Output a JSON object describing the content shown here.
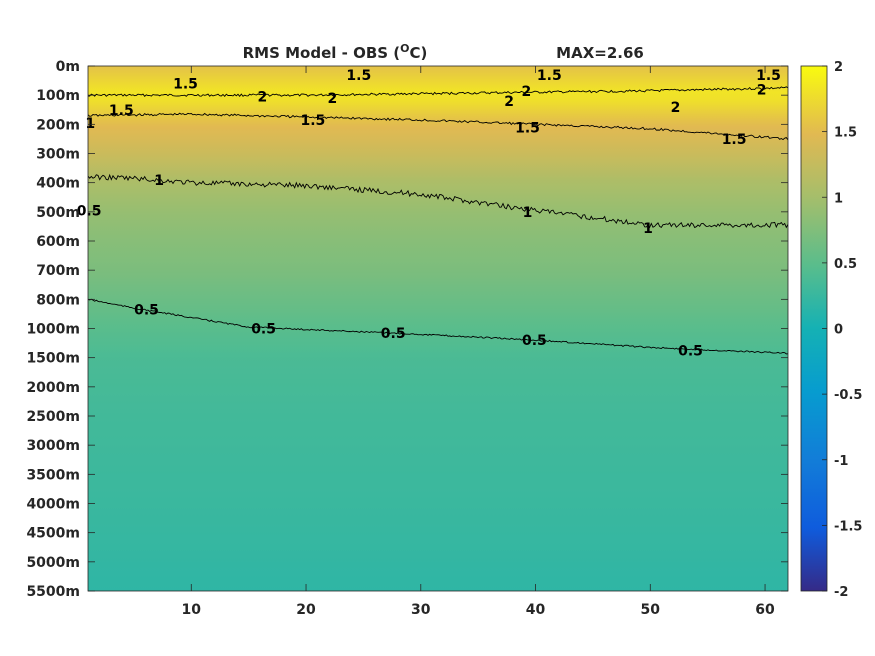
{
  "chart_data": {
    "type": "heatmap",
    "title": "RMS Model - OBS (",
    "title_superscript": "O",
    "title_unit": "C)",
    "max_label": "MAX=2.66",
    "x_ticks": [
      "10",
      "20",
      "30",
      "40",
      "50",
      "60"
    ],
    "x_tick_values": [
      10,
      20,
      30,
      40,
      50,
      60
    ],
    "xlim": [
      1,
      62
    ],
    "y_ticks": [
      "0m",
      "100m",
      "200m",
      "300m",
      "400m",
      "500m",
      "600m",
      "700m",
      "800m",
      "1000m",
      "1500m",
      "2000m",
      "2500m",
      "3000m",
      "3500m",
      "4000m",
      "4500m",
      "5000m",
      "5500m"
    ],
    "colorbar": {
      "ticks": [
        "2",
        "1.5",
        "1",
        "0.5",
        "0",
        "-0.5",
        "-1",
        "-1.5",
        "-2"
      ],
      "range": [
        -2,
        2
      ],
      "colormap": "parula"
    },
    "contour_levels": [
      {
        "level": 2,
        "label": "2",
        "depth_index_by_x": [
          [
            1,
            1.0
          ],
          [
            10,
            1.0
          ],
          [
            20,
            1.0
          ],
          [
            30,
            0.95
          ],
          [
            40,
            0.9
          ],
          [
            50,
            0.85
          ],
          [
            62,
            0.75
          ]
        ]
      },
      {
        "level": 1.5,
        "label": "1.5",
        "depth_index_by_x": [
          [
            1,
            1.7
          ],
          [
            10,
            1.65
          ],
          [
            20,
            1.75
          ],
          [
            30,
            1.85
          ],
          [
            40,
            2.0
          ],
          [
            50,
            2.15
          ],
          [
            62,
            2.5
          ]
        ]
      },
      {
        "level": 1,
        "label": "1",
        "depth_index_by_x": [
          [
            1,
            3.8
          ],
          [
            5,
            3.85
          ],
          [
            10,
            4.0
          ],
          [
            20,
            4.1
          ],
          [
            30,
            4.4
          ],
          [
            40,
            4.95
          ],
          [
            50,
            5.45
          ],
          [
            62,
            5.45
          ]
        ]
      },
      {
        "level": 0.5,
        "label": "0.5",
        "depth_index_by_x": [
          [
            1,
            8.0
          ],
          [
            5,
            8.3
          ],
          [
            15,
            8.95
          ],
          [
            30,
            9.2
          ],
          [
            40,
            9.4
          ],
          [
            50,
            9.65
          ],
          [
            62,
            9.85
          ]
        ]
      }
    ],
    "field_profile": [
      {
        "depth_index": 0,
        "value": 1.55
      },
      {
        "depth_index": 1,
        "value": 1.85
      },
      {
        "depth_index": 2,
        "value": 1.5
      },
      {
        "depth_index": 3,
        "value": 1.3
      },
      {
        "depth_index": 4,
        "value": 1.05
      },
      {
        "depth_index": 5,
        "value": 0.9
      },
      {
        "depth_index": 6,
        "value": 0.8
      },
      {
        "depth_index": 7,
        "value": 0.72
      },
      {
        "depth_index": 8,
        "value": 0.6
      },
      {
        "depth_index": 9,
        "value": 0.48
      },
      {
        "depth_index": 10,
        "value": 0.38
      },
      {
        "depth_index": 12,
        "value": 0.32
      },
      {
        "depth_index": 14,
        "value": 0.28
      },
      {
        "depth_index": 16,
        "value": 0.24
      },
      {
        "depth_index": 18,
        "value": 0.18
      }
    ],
    "contour_labels": [
      {
        "text": "1.5",
        "x": 9.5,
        "d": 0.6
      },
      {
        "text": "1.5",
        "x": 24.6,
        "d": 0.3
      },
      {
        "text": "1.5",
        "x": 41.2,
        "d": 0.3
      },
      {
        "text": "1.5",
        "x": 60.3,
        "d": 0.3
      },
      {
        "text": "2",
        "x": 16.2,
        "d": 1.05
      },
      {
        "text": "2",
        "x": 22.3,
        "d": 1.1
      },
      {
        "text": "2",
        "x": 39.2,
        "d": 0.85
      },
      {
        "text": "2",
        "x": 37.7,
        "d": 1.2
      },
      {
        "text": "2",
        "x": 59.7,
        "d": 0.8
      },
      {
        "text": "2",
        "x": 52.2,
        "d": 1.4
      },
      {
        "text": "1.5",
        "x": 3.9,
        "d": 1.5
      },
      {
        "text": "1.5",
        "x": 20.6,
        "d": 1.85
      },
      {
        "text": "1.5",
        "x": 39.3,
        "d": 2.1
      },
      {
        "text": "1.5",
        "x": 57.3,
        "d": 2.5
      },
      {
        "text": "1",
        "x": 1.2,
        "d": 1.95
      },
      {
        "text": "1",
        "x": 7.2,
        "d": 3.9
      },
      {
        "text": "1",
        "x": 39.3,
        "d": 5.0
      },
      {
        "text": "1",
        "x": 49.8,
        "d": 5.55
      },
      {
        "text": "0.5",
        "x": 1.1,
        "d": 4.95
      },
      {
        "text": "0.5",
        "x": 6.1,
        "d": 8.35
      },
      {
        "text": "0.5",
        "x": 16.3,
        "d": 9.0
      },
      {
        "text": "0.5",
        "x": 27.6,
        "d": 9.15
      },
      {
        "text": "0.5",
        "x": 39.9,
        "d": 9.4
      },
      {
        "text": "0.5",
        "x": 53.5,
        "d": 9.75
      }
    ]
  }
}
